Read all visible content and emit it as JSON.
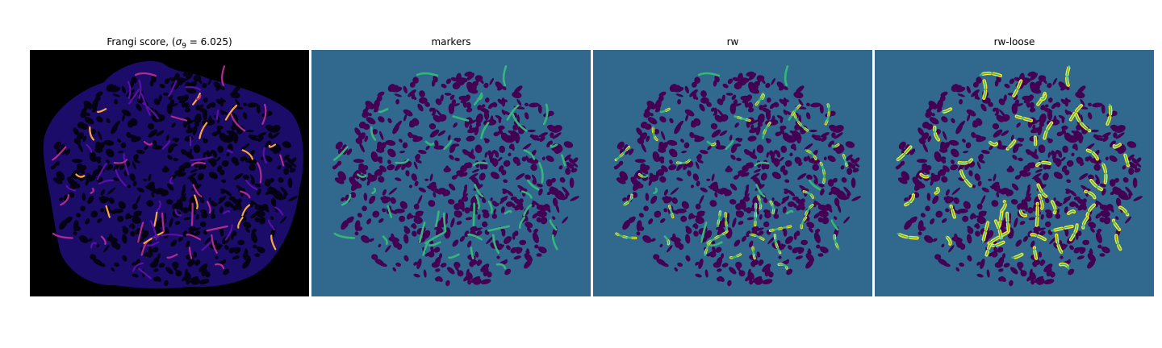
{
  "figure": {
    "panels": [
      {
        "id": "frangi",
        "title_prefix": "Frangi score, (",
        "title_symbol": "σ",
        "title_subscript": "9",
        "title_suffix": " = 6.025)",
        "colormap": "plasma",
        "colors": {
          "background": "#000000",
          "cells": "#2a1190",
          "ridge_low": "#5a0fa8",
          "ridge_mid": "#b12a90",
          "ridge_high": "#fca636"
        }
      },
      {
        "id": "markers",
        "title": "markers",
        "colormap": "viridis",
        "colors": {
          "background": "#31688e",
          "cells": "#440154",
          "markers": "#35b779"
        }
      },
      {
        "id": "rw",
        "title": "rw",
        "colormap": "viridis",
        "colors": {
          "background": "#31688e",
          "cells": "#440154",
          "markers": "#35b779",
          "segmented": "#fde725"
        }
      },
      {
        "id": "rw-loose",
        "title": "rw-loose",
        "colormap": "viridis",
        "colors": {
          "background": "#31688e",
          "cells": "#440154",
          "markers": "#35b779",
          "segmented": "#fde725"
        }
      }
    ]
  }
}
